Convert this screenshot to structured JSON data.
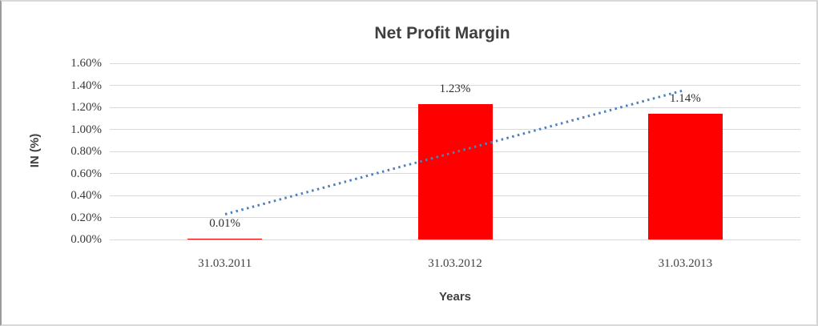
{
  "frame": {
    "background": "#ffffff",
    "border_color": "#d9d9d9"
  },
  "chart_data": {
    "type": "bar",
    "title": "Net Profit Margin",
    "xlabel": "Years",
    "ylabel": "IN (%)",
    "categories": [
      "31.03.2011",
      "31.03.2012",
      "31.03.2013"
    ],
    "values": [
      0.01,
      1.23,
      1.14
    ],
    "data_labels": [
      "0.01%",
      "1.23%",
      "1.14%"
    ],
    "ylim": [
      0,
      1.6
    ],
    "y_tick_step": 0.2,
    "y_tick_labels": [
      "0.00%",
      "0.20%",
      "0.40%",
      "0.60%",
      "0.80%",
      "1.00%",
      "1.20%",
      "1.40%",
      "1.60%"
    ],
    "grid": true,
    "legend": false,
    "bar_color": "#FF0000",
    "gridline_color": "#d9d9d9",
    "text_color": "#3f3f3f",
    "trendline": {
      "type": "linear",
      "style": "dotted",
      "color": "#4F81BD",
      "endpoints_value": [
        0.228,
        1.358
      ]
    }
  }
}
